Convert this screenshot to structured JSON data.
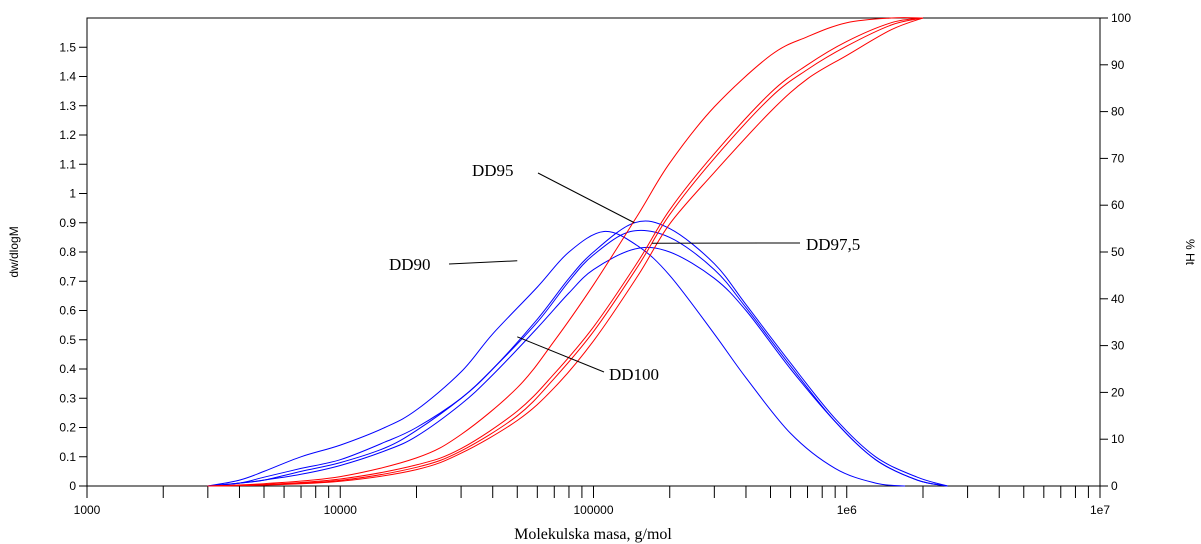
{
  "chart_data": {
    "type": "line",
    "xlabel": "Molekulska masa, g/mol",
    "ylabel": "dw/dlogM",
    "y2label": "% Ht",
    "x_scale": "log",
    "xlim": [
      1000,
      10000000
    ],
    "ylim": [
      0,
      1.6
    ],
    "y2lim": [
      0,
      100
    ],
    "x_tick_labels": [
      "1000",
      "10000",
      "100000",
      "1e6",
      "1e7"
    ],
    "y_tick_labels": [
      "0",
      "0.1",
      "0.2",
      "0.3",
      "0.4",
      "0.5",
      "0.6",
      "0.7",
      "0.8",
      "0.9",
      "1",
      "1.1",
      "1.2",
      "1.3",
      "1.4",
      "1.5"
    ],
    "y2_tick_labels": [
      "0",
      "10",
      "20",
      "30",
      "40",
      "50",
      "60",
      "70",
      "80",
      "90",
      "100"
    ],
    "grid": false,
    "colors": {
      "distribution": "#0000ff",
      "cumulative": "#ff0000"
    },
    "annotations": [
      {
        "text": "DD95",
        "target_x": 145000,
        "target_y": 0.9
      },
      {
        "text": "DD90",
        "target_x": 50000,
        "target_y": 0.77
      },
      {
        "text": "DD97,5",
        "target_x": 170000,
        "target_y": 0.83
      },
      {
        "text": "DD100",
        "target_x": 50000,
        "target_y": 0.51
      }
    ],
    "series": [
      {
        "axis": "left",
        "color": "#0000ff",
        "x": [
          3000,
          4000,
          5000,
          7000,
          10000,
          15000,
          20000,
          30000,
          40000,
          60000,
          80000,
          110000,
          150000,
          200000,
          300000,
          400000,
          600000,
          900000,
          1300000,
          1700000
        ],
        "y": [
          0,
          0.02,
          0.05,
          0.1,
          0.14,
          0.2,
          0.26,
          0.39,
          0.52,
          0.68,
          0.8,
          0.87,
          0.82,
          0.72,
          0.52,
          0.37,
          0.18,
          0.06,
          0.01,
          0
        ]
      },
      {
        "axis": "left",
        "color": "#0000ff",
        "x": [
          3000,
          4000,
          5000,
          7000,
          10000,
          15000,
          20000,
          30000,
          40000,
          60000,
          80000,
          100000,
          145000,
          200000,
          300000,
          400000,
          600000,
          900000,
          1300000,
          1900000,
          2500000
        ],
        "y": [
          0,
          0.01,
          0.03,
          0.06,
          0.09,
          0.15,
          0.2,
          0.3,
          0.4,
          0.57,
          0.71,
          0.8,
          0.9,
          0.88,
          0.76,
          0.62,
          0.42,
          0.23,
          0.1,
          0.03,
          0
        ]
      },
      {
        "axis": "left",
        "color": "#0000ff",
        "x": [
          3000,
          4000,
          5000,
          7000,
          10000,
          15000,
          20000,
          30000,
          40000,
          60000,
          80000,
          100000,
          140000,
          200000,
          300000,
          400000,
          600000,
          900000,
          1300000,
          1900000,
          2500000
        ],
        "y": [
          0,
          0.01,
          0.02,
          0.05,
          0.08,
          0.13,
          0.19,
          0.3,
          0.4,
          0.56,
          0.7,
          0.79,
          0.87,
          0.85,
          0.74,
          0.61,
          0.41,
          0.22,
          0.09,
          0.02,
          0
        ]
      },
      {
        "axis": "left",
        "color": "#0000ff",
        "x": [
          3000,
          4000,
          5000,
          7000,
          10000,
          15000,
          20000,
          30000,
          40000,
          60000,
          80000,
          100000,
          145000,
          200000,
          300000,
          400000,
          600000,
          900000,
          1300000,
          1900000,
          2500000
        ],
        "y": [
          0,
          0.01,
          0.02,
          0.04,
          0.07,
          0.12,
          0.17,
          0.28,
          0.38,
          0.54,
          0.66,
          0.74,
          0.81,
          0.8,
          0.71,
          0.6,
          0.4,
          0.22,
          0.09,
          0.02,
          0
        ]
      },
      {
        "axis": "right",
        "color": "#ff0000",
        "x": [
          3000,
          5000,
          10000,
          20000,
          30000,
          50000,
          70000,
          100000,
          150000,
          200000,
          300000,
          500000,
          700000,
          1000000,
          1500000,
          2000000
        ],
        "y": [
          0,
          0.5,
          2,
          6,
          11,
          21,
          31,
          43,
          58,
          69,
          81,
          92,
          96,
          99,
          100,
          100
        ]
      },
      {
        "axis": "right",
        "color": "#ff0000",
        "x": [
          3000,
          5000,
          10000,
          20000,
          30000,
          50000,
          70000,
          100000,
          150000,
          200000,
          300000,
          500000,
          700000,
          1000000,
          1500000,
          2000000
        ],
        "y": [
          0,
          0.3,
          1.5,
          4.5,
          8,
          16,
          24,
          34,
          48,
          59,
          71,
          84,
          90,
          95,
          99,
          100
        ]
      },
      {
        "axis": "right",
        "color": "#ff0000",
        "x": [
          3000,
          5000,
          10000,
          20000,
          30000,
          50000,
          70000,
          100000,
          150000,
          200000,
          300000,
          500000,
          700000,
          1000000,
          1500000,
          2000000
        ],
        "y": [
          0,
          0.3,
          1.2,
          4,
          7.5,
          15,
          23,
          33,
          47,
          58,
          70,
          83,
          89,
          94,
          98.5,
          100
        ]
      },
      {
        "axis": "right",
        "color": "#ff0000",
        "x": [
          3000,
          5000,
          10000,
          20000,
          30000,
          50000,
          70000,
          100000,
          150000,
          200000,
          300000,
          500000,
          700000,
          1000000,
          1500000,
          2000000
        ],
        "y": [
          0,
          0.2,
          1,
          3.5,
          7,
          14,
          21,
          31,
          45,
          56,
          67,
          80,
          87,
          92,
          97.5,
          100
        ]
      }
    ]
  }
}
